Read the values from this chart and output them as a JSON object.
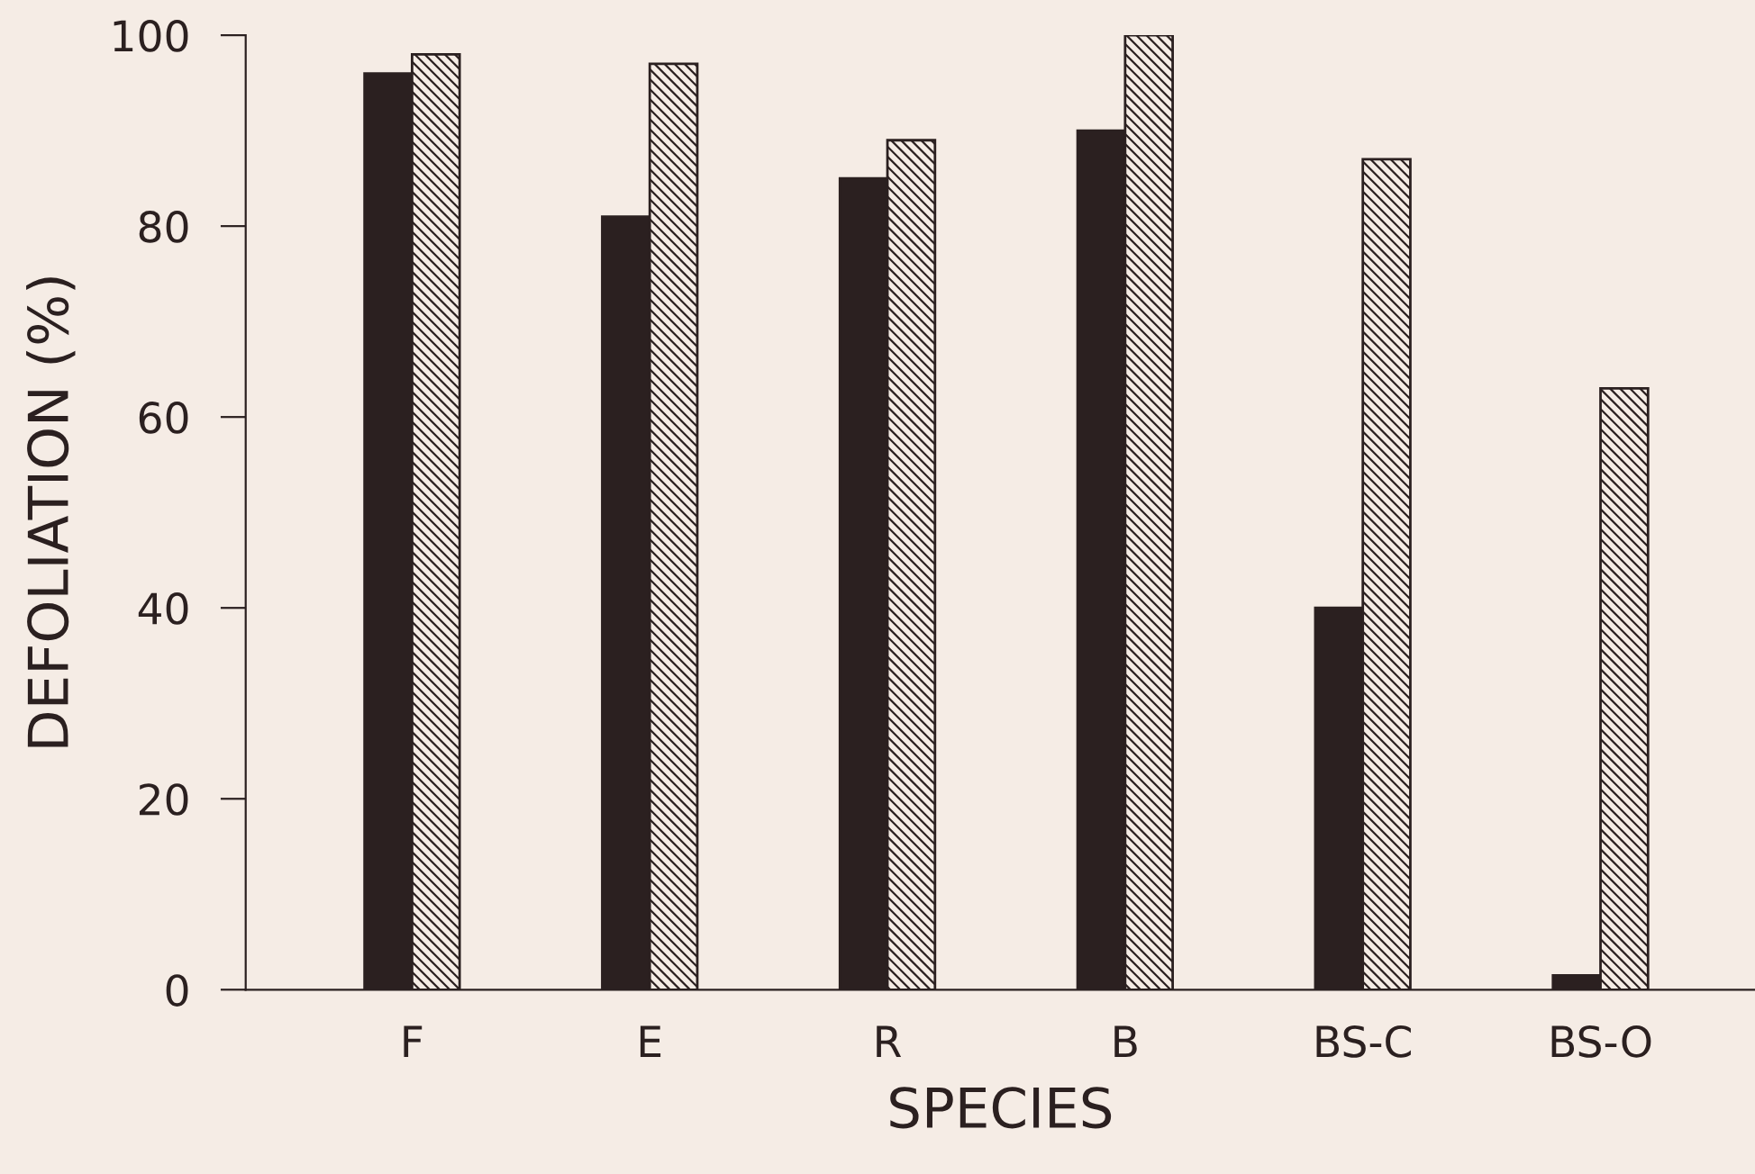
{
  "chart_data": {
    "type": "bar",
    "xlabel": "SPECIES",
    "ylabel": "DEFOLIATION (%)",
    "categories": [
      "F",
      "E",
      "R",
      "B",
      "BS-C",
      "BS-O"
    ],
    "series": [
      {
        "color": "#2b2020",
        "values": [
          96,
          81,
          85,
          90,
          40,
          1.5
        ]
      },
      {
        "color": "#2b2020",
        "values": [
          98,
          97,
          89,
          100,
          87,
          63
        ]
      }
    ],
    "ylim": [
      0,
      100
    ],
    "yticks": [
      0,
      20,
      40,
      60,
      80,
      100
    ],
    "grid": false,
    "legend": false
  }
}
